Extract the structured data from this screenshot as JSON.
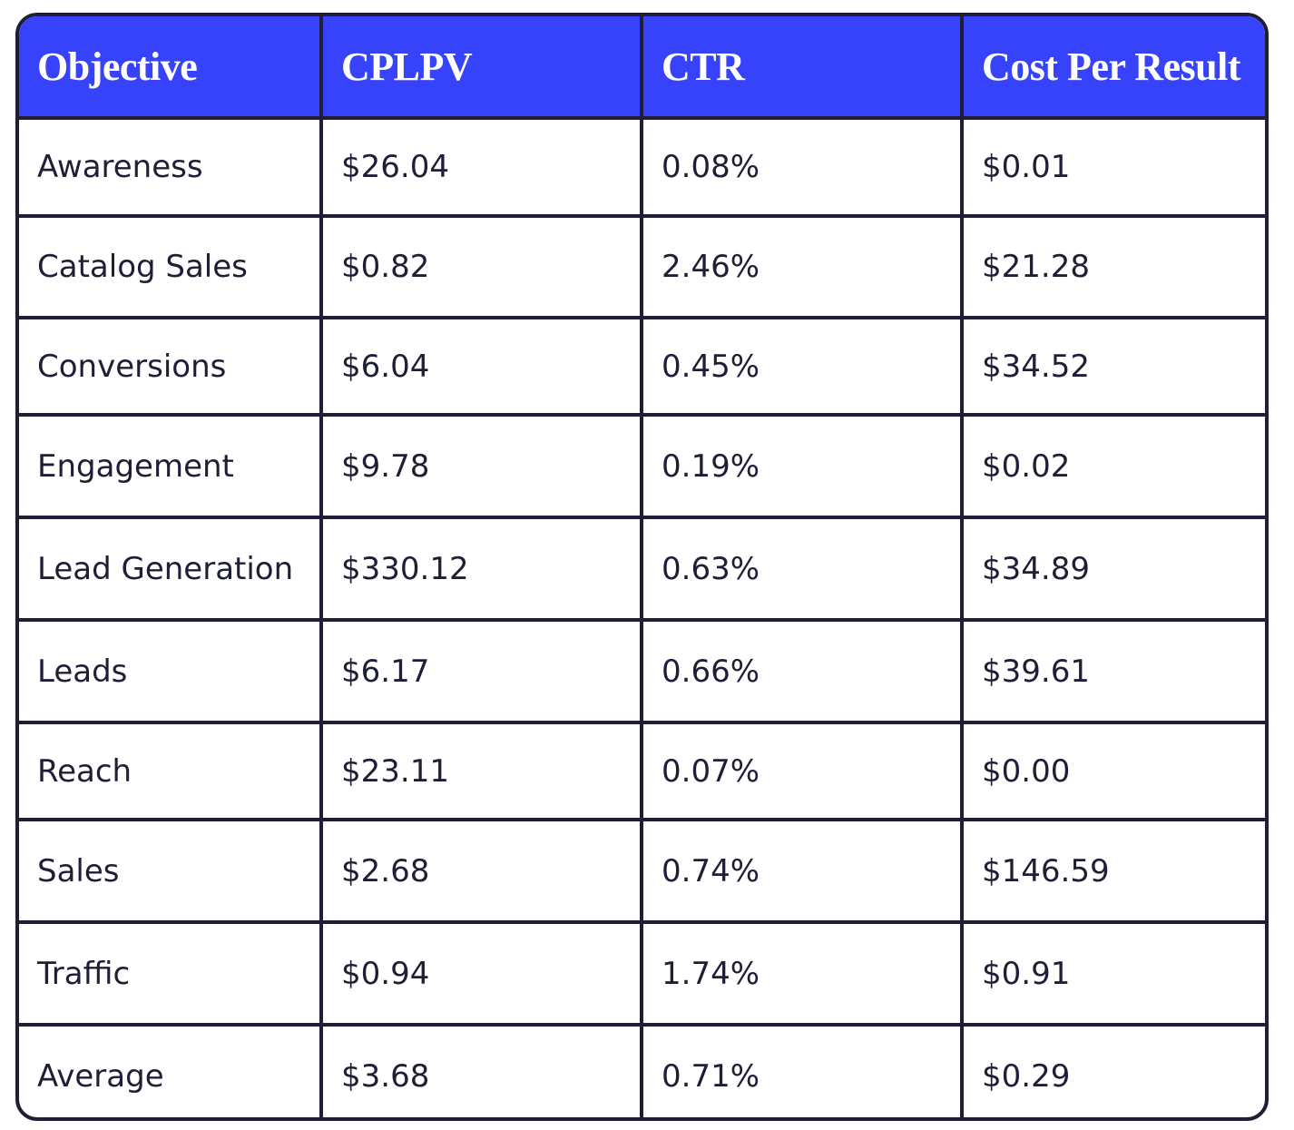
{
  "table": {
    "header": [
      "Objective",
      "CPLPV",
      "CTR",
      "Cost Per Result"
    ],
    "rows": [
      [
        "Awareness",
        "$26.04",
        "0.08%",
        "$0.01"
      ],
      [
        "Catalog Sales",
        "$0.82",
        "2.46%",
        "$21.28"
      ],
      [
        "Conversions",
        "$6.04",
        "0.45%",
        "$34.52"
      ],
      [
        "Engagement",
        "$9.78",
        "0.19%",
        "$0.02"
      ],
      [
        "Lead Generation",
        "$330.12",
        "0.63%",
        "$34.89"
      ],
      [
        "Leads",
        "$6.17",
        "0.66%",
        "$39.61"
      ],
      [
        "Reach",
        "$23.11",
        "0.07%",
        "$0.00"
      ],
      [
        "Sales",
        "$2.68",
        "0.74%",
        "$146.59"
      ],
      [
        "Traffic",
        "$0.94",
        "1.74%",
        "$0.91"
      ],
      [
        "Average",
        "$3.68",
        "0.71%",
        "$0.29"
      ]
    ]
  }
}
